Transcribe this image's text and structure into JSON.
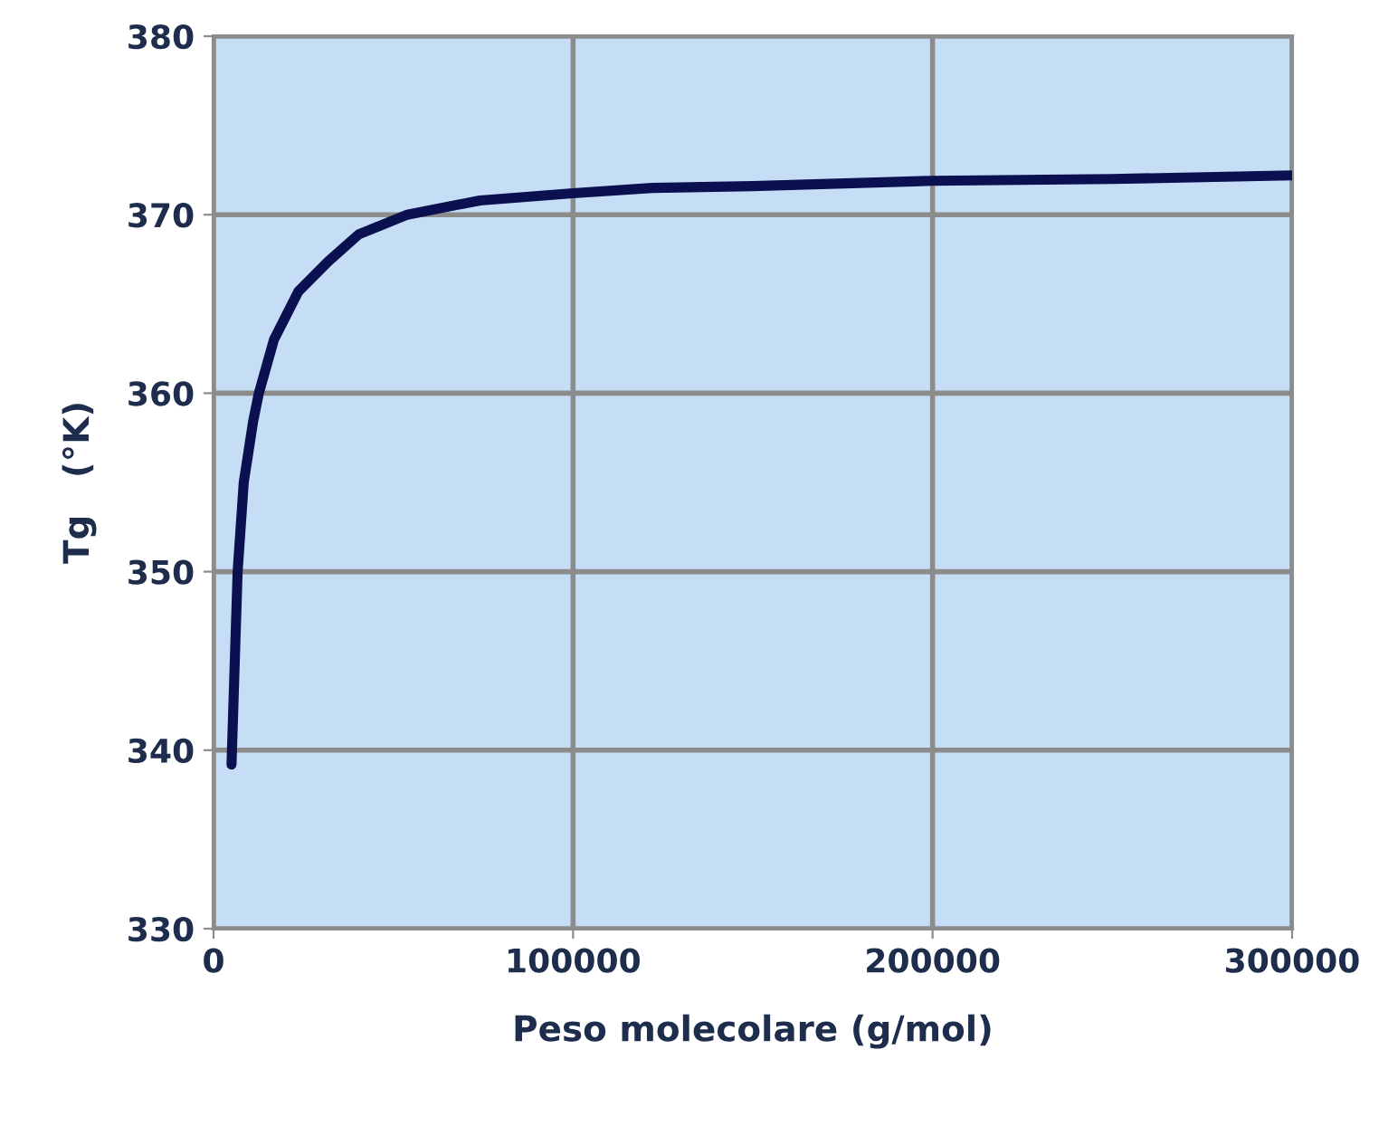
{
  "chart_data": {
    "type": "line",
    "xlabel": "Peso molecolare (g/mol)",
    "ylabel": "Tg   (°K)",
    "series": [
      {
        "color": "#0b1150",
        "x": [
          5000,
          6700,
          8400,
          11000,
          12600,
          16800,
          23600,
          32000,
          40400,
          53900,
          74100,
          100000,
          122000,
          150000,
          200000,
          250000,
          300000
        ],
        "values": [
          339.2,
          350,
          355,
          358.4,
          360,
          363,
          365.7,
          367.4,
          368.9,
          370.0,
          370.8,
          371.2,
          371.5,
          371.6,
          371.9,
          372.0,
          372.2
        ]
      }
    ],
    "xlim": [
      0,
      300000
    ],
    "xticks": [
      0,
      100000,
      200000,
      300000
    ],
    "ylim": [
      330,
      380
    ],
    "yticks": [
      330,
      340,
      350,
      360,
      370,
      380
    ],
    "grid": true,
    "marker": "none",
    "line_style": "solid"
  }
}
